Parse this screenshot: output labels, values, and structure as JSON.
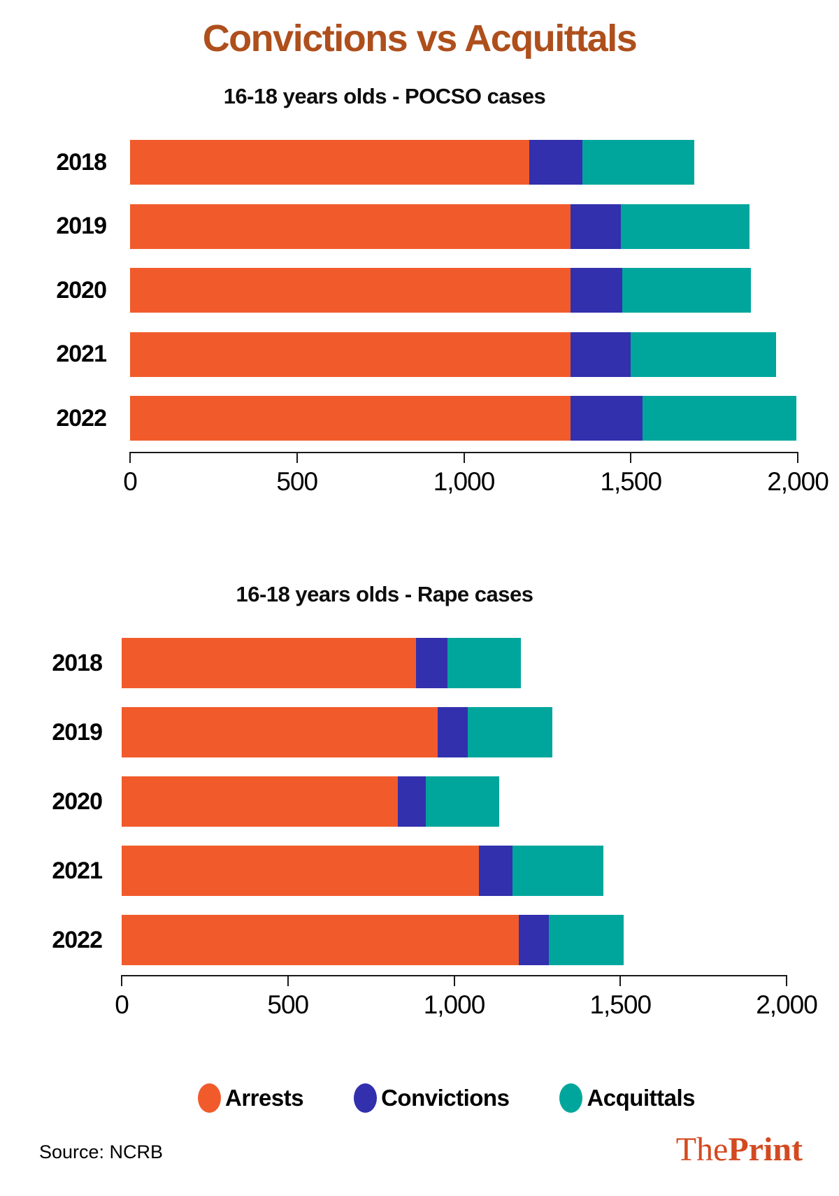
{
  "title": "Convictions vs Acquittals",
  "colors": {
    "arrests": "#f15b2b",
    "convictions": "#3230ad",
    "acquittals": "#00a69c",
    "title": "#ae4f1c",
    "axis": "#1a1a1a",
    "logo": "#d34a21"
  },
  "legend": [
    {
      "key": "arrests",
      "label": "Arrests"
    },
    {
      "key": "convictions",
      "label": "Convictions"
    },
    {
      "key": "acquittals",
      "label": "Acquittals"
    }
  ],
  "source": "Source: NCRB",
  "logo": {
    "the": "The",
    "print": "Print"
  },
  "chart_data": [
    {
      "type": "bar",
      "orientation": "horizontal",
      "stacked": true,
      "title": "16-18 years olds - POCSO cases",
      "categories": [
        "2018",
        "2019",
        "2020",
        "2021",
        "2022"
      ],
      "series": [
        {
          "name": "Arrests",
          "values": [
            1195,
            1320,
            1320,
            1320,
            1320
          ]
        },
        {
          "name": "Convictions",
          "values": [
            160,
            150,
            155,
            180,
            215
          ]
        },
        {
          "name": "Acquittals",
          "values": [
            335,
            385,
            385,
            435,
            460
          ]
        }
      ],
      "xlim": [
        0,
        2000
      ],
      "xticks": [
        0,
        500,
        1000,
        1500,
        2000
      ],
      "xtick_labels": [
        "0",
        "500",
        "1,000",
        "1,500",
        "2,000"
      ],
      "grid": false,
      "legend_position": "bottom"
    },
    {
      "type": "bar",
      "orientation": "horizontal",
      "stacked": true,
      "title": "16-18 years olds - Rape cases",
      "categories": [
        "2018",
        "2019",
        "2020",
        "2021",
        "2022"
      ],
      "series": [
        {
          "name": "Arrests",
          "values": [
            885,
            950,
            830,
            1075,
            1195
          ]
        },
        {
          "name": "Convictions",
          "values": [
            95,
            90,
            85,
            100,
            90
          ]
        },
        {
          "name": "Acquittals",
          "values": [
            220,
            255,
            220,
            275,
            225
          ]
        }
      ],
      "xlim": [
        0,
        2000
      ],
      "xticks": [
        0,
        500,
        1000,
        1500,
        2000
      ],
      "xtick_labels": [
        "0",
        "500",
        "1,000",
        "1,500",
        "2,000"
      ],
      "grid": false,
      "legend_position": "bottom"
    }
  ]
}
